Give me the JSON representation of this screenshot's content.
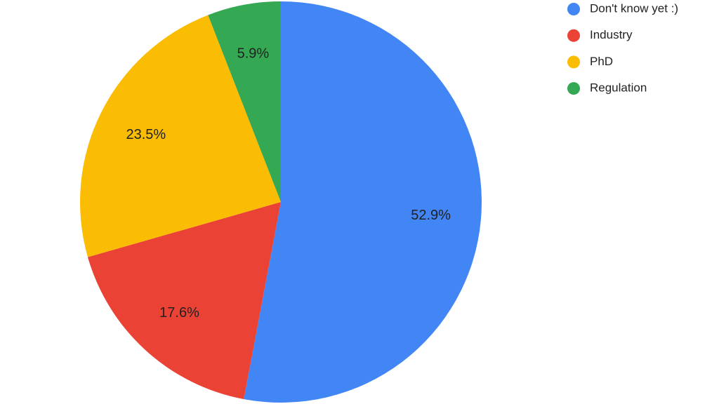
{
  "chart_data": {
    "type": "pie",
    "categories": [
      "Don't know yet :)",
      "Industry",
      "PhD",
      "Regulation"
    ],
    "values": [
      52.9,
      17.6,
      23.5,
      5.9
    ],
    "value_labels": [
      "52.9%",
      "17.6%",
      "23.5%",
      "5.9%"
    ],
    "colors": [
      "#4285f4",
      "#ea4335",
      "#fbbc04",
      "#34a853"
    ],
    "legend": "top-right"
  }
}
